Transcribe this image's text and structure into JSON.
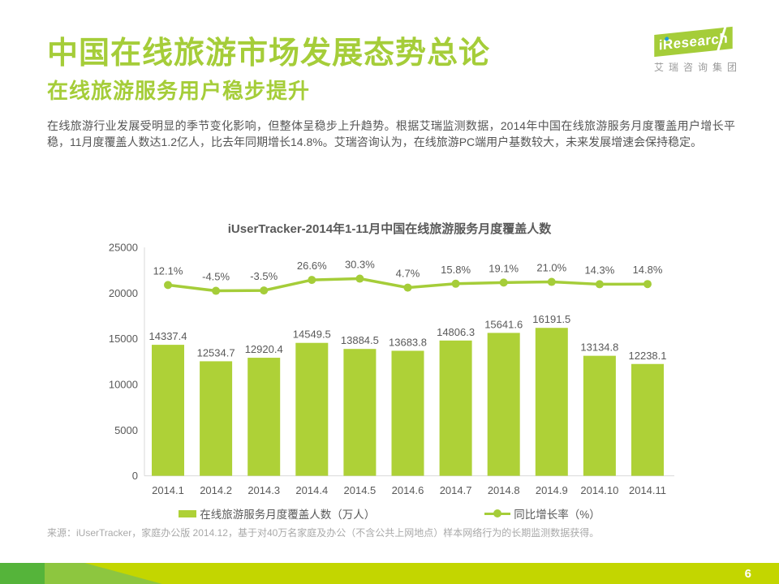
{
  "page": {
    "title": "中国在线旅游市场发展态势总论",
    "subtitle": "在线旅游服务用户稳步提升",
    "body": "在线旅游行业发展受明显的季节变化影响，但整体呈稳步上升趋势。根据艾瑞监测数据，2014年中国在线旅游服务月度覆盖用户增长平稳，11月度覆盖人数达1.2亿人，比去年同期增长14.8%。艾瑞咨询认为，在线旅游PC端用户基数较大，未来发展增速会保持稳定。",
    "source_note": "来源：iUserTracker，家庭办公版 2014.12，基于对40万名家庭及办公（不含公共上网地点）样本网络行为的长期监测数据获得。",
    "page_number": "6"
  },
  "logo": {
    "brand": "iResearch",
    "brand_cn": "艾瑞咨询集团"
  },
  "colors": {
    "brand_green": "#a5cd39",
    "bar_green": "#aed137",
    "line_green": "#a5cd39",
    "label_gray": "#595959",
    "axis_gray": "#d9d9d9",
    "footer_yellow_green": "#c3d600",
    "footer_dark_green": "#55b43a",
    "footer_light_green": "#8dc63f",
    "logo_blue": "#1f9cd8"
  },
  "chart_data": {
    "type": "bar+line",
    "title": "iUserTracker-2014年1-11月中国在线旅游服务月度覆盖人数",
    "categories": [
      "2014.1",
      "2014.2",
      "2014.3",
      "2014.4",
      "2014.5",
      "2014.6",
      "2014.7",
      "2014.8",
      "2014.9",
      "2014.10",
      "2014.11"
    ],
    "series": [
      {
        "name": "在线旅游服务月度覆盖人数（万人）",
        "type": "bar",
        "values": [
          14337.4,
          12534.7,
          12920.4,
          14549.5,
          13884.5,
          13683.8,
          14806.3,
          15641.6,
          16191.5,
          13134.8,
          12238.1
        ]
      },
      {
        "name": "同比增长率（%）",
        "type": "line",
        "values": [
          12.1,
          -4.5,
          -3.5,
          26.6,
          30.3,
          4.7,
          15.8,
          19.1,
          21.0,
          14.3,
          14.8
        ],
        "labels": [
          "12.1%",
          "-4.5%",
          "-3.5%",
          "26.6%",
          "30.3%",
          "4.7%",
          "15.8%",
          "19.1%",
          "21.0%",
          "14.3%",
          "14.8%"
        ]
      }
    ],
    "y_axis": {
      "min": 0,
      "max": 25000,
      "ticks": [
        0,
        5000,
        10000,
        15000,
        20000,
        25000
      ]
    },
    "grid": "off",
    "legend_position": "bottom"
  }
}
